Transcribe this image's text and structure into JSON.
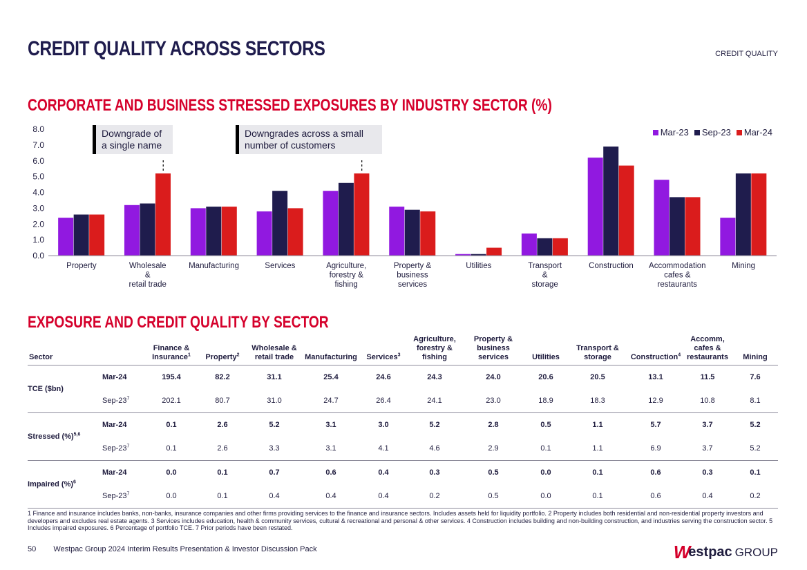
{
  "header": {
    "title": "CREDIT QUALITY ACROSS SECTORS",
    "section_tag": "CREDIT QUALITY"
  },
  "chart_heading": "CORPORATE AND BUSINESS STRESSED EXPOSURES BY INDUSTRY SECTOR (%)",
  "callouts": {
    "first": [
      "Downgrade of",
      "a single name"
    ],
    "second": [
      "Downgrades across a small",
      "number of customers"
    ]
  },
  "colors": {
    "mar23": "#9119e0",
    "sep23": "#1f1c4d",
    "mar24": "#da1c1c",
    "brand_red": "#d5002b"
  },
  "chart_data": {
    "type": "bar",
    "categories": [
      [
        "Property"
      ],
      [
        "Wholesale",
        "&",
        "retail trade"
      ],
      [
        "Manufacturing"
      ],
      [
        "Services"
      ],
      [
        "Agriculture,",
        "forestry &",
        "fishing"
      ],
      [
        "Property &",
        "business",
        "services"
      ],
      [
        "Utilities"
      ],
      [
        "Transport",
        "&",
        "storage"
      ],
      [
        "Construction"
      ],
      [
        "Accommodation",
        "cafes &",
        "restaurants"
      ],
      [
        "Mining"
      ]
    ],
    "series": [
      {
        "name": "Mar-23",
        "values": [
          2.4,
          3.2,
          3.0,
          2.8,
          4.1,
          3.1,
          0.1,
          1.4,
          6.2,
          4.8,
          2.4
        ]
      },
      {
        "name": "Sep-23",
        "values": [
          2.6,
          3.3,
          3.1,
          4.1,
          4.6,
          2.9,
          0.1,
          1.1,
          6.9,
          3.7,
          5.2
        ]
      },
      {
        "name": "Mar-24",
        "values": [
          2.6,
          5.2,
          3.1,
          3.0,
          5.2,
          2.8,
          0.5,
          1.1,
          5.7,
          3.7,
          5.2
        ]
      }
    ],
    "yticks": [
      "0.0",
      "1.0",
      "2.0",
      "3.0",
      "4.0",
      "5.0",
      "6.0",
      "7.0",
      "8.0"
    ],
    "ylim": [
      0,
      8
    ],
    "legend": "top-right",
    "grid": false
  },
  "table_heading": "EXPOSURE AND CREDIT QUALITY BY SECTOR",
  "table": {
    "sector_header": "Sector",
    "columns": [
      {
        "lines": [
          "Finance &",
          "Insurance"
        ],
        "sup": "1"
      },
      {
        "lines": [
          "Property"
        ],
        "sup": "2"
      },
      {
        "lines": [
          "Wholesale &",
          "retail trade"
        ],
        "sup": ""
      },
      {
        "lines": [
          "Manufacturing"
        ],
        "sup": ""
      },
      {
        "lines": [
          "Services"
        ],
        "sup": "3"
      },
      {
        "lines": [
          "Agriculture,",
          "forestry &",
          "fishing"
        ],
        "sup": ""
      },
      {
        "lines": [
          "Property &",
          "business",
          "services"
        ],
        "sup": ""
      },
      {
        "lines": [
          "Utilities"
        ],
        "sup": ""
      },
      {
        "lines": [
          "Transport &",
          "storage"
        ],
        "sup": ""
      },
      {
        "lines": [
          "Construction"
        ],
        "sup": "4"
      },
      {
        "lines": [
          "Accomm,",
          "cafes &",
          "restaurants"
        ],
        "sup": ""
      },
      {
        "lines": [
          "Mining"
        ],
        "sup": ""
      }
    ],
    "groups": [
      {
        "metric": "TCE ($bn)",
        "metric_sup": "",
        "rows": [
          {
            "period": "Mar-24",
            "period_sup": "",
            "values": [
              "195.4",
              "82.2",
              "31.1",
              "25.4",
              "24.6",
              "24.3",
              "24.0",
              "20.6",
              "20.5",
              "13.1",
              "11.5",
              "7.6"
            ]
          },
          {
            "period": "Sep-23",
            "period_sup": "7",
            "values": [
              "202.1",
              "80.7",
              "31.0",
              "24.7",
              "26.4",
              "24.1",
              "23.0",
              "18.9",
              "18.3",
              "12.9",
              "10.8",
              "8.1"
            ]
          }
        ]
      },
      {
        "metric": "Stressed (%)",
        "metric_sup": "5,6",
        "rows": [
          {
            "period": "Mar-24",
            "period_sup": "",
            "values": [
              "0.1",
              "2.6",
              "5.2",
              "3.1",
              "3.0",
              "5.2",
              "2.8",
              "0.5",
              "1.1",
              "5.7",
              "3.7",
              "5.2"
            ]
          },
          {
            "period": "Sep-23",
            "period_sup": "7",
            "values": [
              "0.1",
              "2.6",
              "3.3",
              "3.1",
              "4.1",
              "4.6",
              "2.9",
              "0.1",
              "1.1",
              "6.9",
              "3.7",
              "5.2"
            ]
          }
        ]
      },
      {
        "metric": "Impaired (%)",
        "metric_sup": "6",
        "rows": [
          {
            "period": "Mar-24",
            "period_sup": "",
            "values": [
              "0.0",
              "0.1",
              "0.7",
              "0.6",
              "0.4",
              "0.3",
              "0.5",
              "0.0",
              "0.1",
              "0.6",
              "0.3",
              "0.1"
            ]
          },
          {
            "period": "Sep-23",
            "period_sup": "7",
            "values": [
              "0.0",
              "0.1",
              "0.4",
              "0.4",
              "0.4",
              "0.2",
              "0.5",
              "0.0",
              "0.1",
              "0.6",
              "0.4",
              "0.2"
            ]
          }
        ]
      }
    ]
  },
  "footnote": "1 Finance and insurance includes banks, non-banks, insurance companies and other firms providing services to the finance and insurance sectors. Includes assets held for liquidity portfolio. 2 Property includes both residential and non-residential property investors and developers and excludes real estate agents. 3 Services includes education, health & community services, cultural & recreational and personal & other services. 4 Construction includes building and non-building construction, and industries serving the construction sector. 5 Includes impaired exposures. 6 Percentage of portfolio TCE. 7 Prior periods have been restated.",
  "footer": {
    "page_number": "50",
    "text": "Westpac Group 2024 Interim Results Presentation & Investor Discussion Pack",
    "logo_mark": "W",
    "logo_word": "estpac",
    "logo_group": "GROUP"
  }
}
